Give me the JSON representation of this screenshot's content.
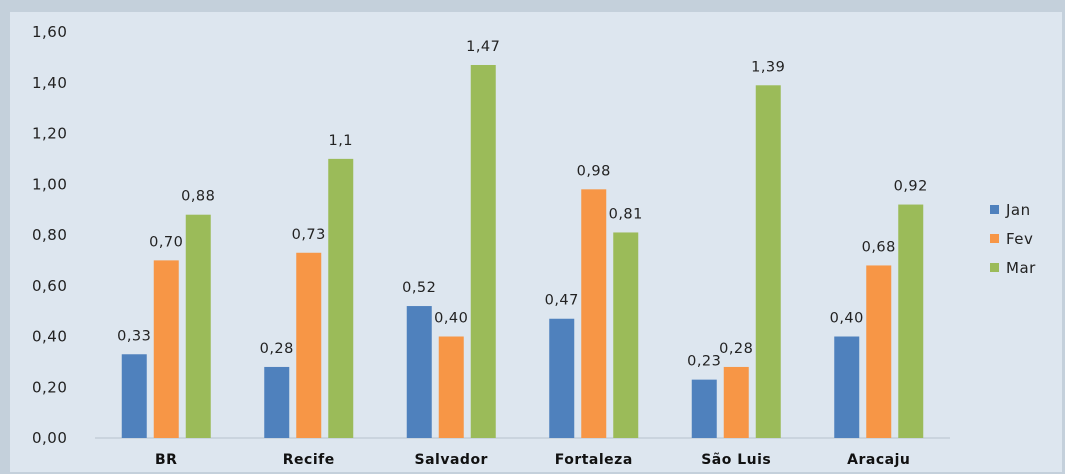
{
  "chart_data": {
    "type": "bar",
    "categories": [
      "BR",
      "Recife",
      "Salvador",
      "Fortaleza",
      "São Luis",
      "Aracaju"
    ],
    "series": [
      {
        "name": "Jan",
        "color": "#4f81bd",
        "values": [
          0.33,
          0.28,
          0.52,
          0.47,
          0.23,
          0.4
        ],
        "labels": [
          "0,33",
          "0,28",
          "0,52",
          "0,47",
          "0,23",
          "0,40"
        ]
      },
      {
        "name": "Fev",
        "color": "#f79646",
        "values": [
          0.7,
          0.73,
          0.4,
          0.98,
          0.28,
          0.68
        ],
        "labels": [
          "0,70",
          "0,73",
          "0,40",
          "0,98",
          "0,28",
          "0,68"
        ]
      },
      {
        "name": "Mar",
        "color": "#9bbb59",
        "values": [
          0.88,
          1.1,
          1.47,
          0.81,
          1.39,
          0.92
        ],
        "labels": [
          "0,88",
          "1,1",
          "1,47",
          "0,81",
          "1,39",
          "0,92"
        ]
      }
    ],
    "yticks": [
      0,
      0.2,
      0.4,
      0.6,
      0.8,
      1.0,
      1.2,
      1.4,
      1.6
    ],
    "ytick_labels": [
      "0,00",
      "0,20",
      "0,40",
      "0,60",
      "0,80",
      "1,00",
      "1,20",
      "1,40",
      "1,60"
    ],
    "ylim": [
      0,
      1.6
    ],
    "grid": false,
    "legend": "right",
    "title": "",
    "xlabel": "",
    "ylabel": ""
  }
}
